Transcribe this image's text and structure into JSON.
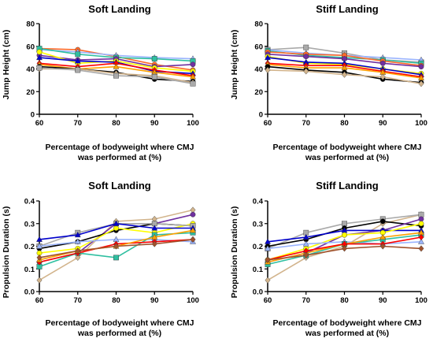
{
  "chart_data": [
    {
      "type": "line",
      "title": "Soft Landing",
      "xlabel": [
        "Percentage of bodyweight where CMJ",
        "was performed at (%)"
      ],
      "ylabel": "Jump Height  (cm)",
      "xlim": [
        60,
        100
      ],
      "ylim": [
        0,
        80
      ],
      "xticks": [
        "60",
        "70",
        "80",
        "90",
        "100"
      ],
      "yticks": [
        "0",
        "20",
        "40",
        "60",
        "80"
      ],
      "x": [
        60,
        70,
        80,
        90,
        100
      ],
      "series": [
        {
          "color": "#ff6a2a",
          "marker": "circle",
          "values": [
            58,
            57,
            51,
            44,
            39
          ]
        },
        {
          "color": "#9ab4ff",
          "marker": "triangle",
          "values": [
            57,
            55,
            52,
            50,
            49
          ]
        },
        {
          "color": "#2fbfa0",
          "marker": "square",
          "values": [
            58,
            53,
            50,
            49,
            47
          ]
        },
        {
          "color": "#7030a0",
          "marker": "circle",
          "values": [
            52,
            48,
            49,
            42,
            44
          ]
        },
        {
          "color": "#ffff00",
          "marker": "circle",
          "values": [
            55,
            45,
            47,
            41,
            38
          ]
        },
        {
          "color": "#0000cc",
          "marker": "triangle",
          "values": [
            50,
            47,
            46,
            38,
            36
          ]
        },
        {
          "color": "#ff0000",
          "marker": "diamond",
          "values": [
            45,
            42,
            45,
            39,
            34
          ]
        },
        {
          "color": "#ffa000",
          "marker": "triangle",
          "values": [
            44,
            40,
            42,
            37,
            33
          ]
        },
        {
          "color": "#000000",
          "marker": "circle",
          "values": [
            42,
            40,
            37,
            31,
            29
          ]
        },
        {
          "color": "#d2b48c",
          "marker": "diamond",
          "values": [
            40,
            40,
            36,
            34,
            28
          ]
        },
        {
          "color": "#aaaaaa",
          "marker": "square",
          "values": [
            41,
            39,
            34,
            33,
            27
          ]
        }
      ]
    },
    {
      "type": "line",
      "title": "Stiff Landing",
      "xlabel": [
        "Percentage of bodyweight where CMJ",
        "was performed at (%)"
      ],
      "ylabel": "Jump Height  (cm)",
      "xlim": [
        60,
        100
      ],
      "ylim": [
        0,
        80
      ],
      "xticks": [
        "60",
        "70",
        "80",
        "90",
        "100"
      ],
      "yticks": [
        "0",
        "20",
        "40",
        "60",
        "80"
      ],
      "x": [
        60,
        70,
        80,
        90,
        100
      ],
      "series": [
        {
          "color": "#aaaaaa",
          "marker": "square",
          "values": [
            57,
            59,
            54,
            48,
            46
          ]
        },
        {
          "color": "#9ab4ff",
          "marker": "triangle",
          "values": [
            57,
            54,
            52,
            50,
            48
          ]
        },
        {
          "color": "#2fbfa0",
          "marker": "square",
          "values": [
            56,
            52,
            50,
            48,
            45
          ]
        },
        {
          "color": "#ff6a2a",
          "marker": "circle",
          "values": [
            55,
            53,
            52,
            47,
            43
          ]
        },
        {
          "color": "#7030a0",
          "marker": "circle",
          "values": [
            53,
            51,
            49,
            45,
            42
          ]
        },
        {
          "color": "#ffff00",
          "marker": "circle",
          "values": [
            51,
            45,
            44,
            40,
            36
          ]
        },
        {
          "color": "#0000cc",
          "marker": "triangle",
          "values": [
            50,
            46,
            45,
            40,
            35
          ]
        },
        {
          "color": "#ff0000",
          "marker": "diamond",
          "values": [
            45,
            43,
            43,
            38,
            33
          ]
        },
        {
          "color": "#ffa000",
          "marker": "triangle",
          "values": [
            44,
            41,
            41,
            37,
            32
          ]
        },
        {
          "color": "#000000",
          "marker": "circle",
          "values": [
            42,
            39,
            37,
            31,
            28
          ]
        },
        {
          "color": "#d2b48c",
          "marker": "diamond",
          "values": [
            39,
            38,
            35,
            33,
            27
          ]
        }
      ]
    },
    {
      "type": "line",
      "title": "Soft Landing",
      "xlabel": [
        "Percentage of bodyweight where CMJ",
        "was performed at (%)"
      ],
      "ylabel": "Propulsion Duration  (s)",
      "xlim": [
        60,
        100
      ],
      "ylim": [
        0,
        0.4
      ],
      "xticks": [
        "60",
        "70",
        "80",
        "90",
        "100"
      ],
      "yticks": [
        "0.0",
        "0.1",
        "0.2",
        "0.3",
        "0.4"
      ],
      "x": [
        60,
        70,
        80,
        90,
        100
      ],
      "series": [
        {
          "color": "#d2b48c",
          "marker": "diamond",
          "values": [
            0.05,
            0.15,
            0.31,
            0.32,
            0.36
          ]
        },
        {
          "color": "#7030a0",
          "marker": "circle",
          "values": [
            0.13,
            0.17,
            0.3,
            0.3,
            0.34
          ]
        },
        {
          "color": "#000000",
          "marker": "circle",
          "values": [
            0.19,
            0.22,
            0.27,
            0.3,
            0.29
          ]
        },
        {
          "color": "#ffff00",
          "marker": "circle",
          "values": [
            0.17,
            0.19,
            0.28,
            0.26,
            0.3
          ]
        },
        {
          "color": "#aaaaaa",
          "marker": "square",
          "values": [
            0.2,
            0.26,
            0.3,
            0.3,
            0.29
          ]
        },
        {
          "color": "#0000cc",
          "marker": "triangle",
          "values": [
            0.23,
            0.25,
            0.3,
            0.28,
            0.28
          ]
        },
        {
          "color": "#9ab4ff",
          "marker": "triangle",
          "values": [
            0.2,
            0.22,
            0.23,
            0.23,
            0.22
          ]
        },
        {
          "color": "#2fbfa0",
          "marker": "square",
          "values": [
            0.11,
            0.17,
            0.15,
            0.25,
            0.26
          ]
        },
        {
          "color": "#ff0000",
          "marker": "diamond",
          "values": [
            0.13,
            0.17,
            0.21,
            0.22,
            0.23
          ]
        },
        {
          "color": "#ffa000",
          "marker": "triangle",
          "values": [
            0.14,
            0.18,
            0.2,
            0.24,
            0.27
          ]
        },
        {
          "color": "#a0522d",
          "marker": "diamond",
          "values": [
            0.15,
            0.18,
            0.2,
            0.21,
            0.23
          ]
        }
      ]
    },
    {
      "type": "line",
      "title": "Stiff Landing",
      "xlabel": [
        "Percentage of bodyweight where CMJ",
        "was performed at (%)"
      ],
      "ylabel": "Propulsion Duration  (s)",
      "xlim": [
        60,
        100
      ],
      "ylim": [
        0,
        0.4
      ],
      "xticks": [
        "60",
        "70",
        "80",
        "90",
        "100"
      ],
      "yticks": [
        "0.0",
        "0.1",
        "0.2",
        "0.3",
        "0.4"
      ],
      "x": [
        60,
        70,
        80,
        90,
        100
      ],
      "series": [
        {
          "color": "#d2b48c",
          "marker": "diamond",
          "values": [
            0.05,
            0.15,
            0.2,
            0.3,
            0.34
          ]
        },
        {
          "color": "#aaaaaa",
          "marker": "square",
          "values": [
            0.19,
            0.26,
            0.3,
            0.32,
            0.34
          ]
        },
        {
          "color": "#000000",
          "marker": "circle",
          "values": [
            0.2,
            0.23,
            0.28,
            0.31,
            0.29
          ]
        },
        {
          "color": "#7030a0",
          "marker": "circle",
          "values": [
            0.13,
            0.17,
            0.25,
            0.27,
            0.32
          ]
        },
        {
          "color": "#0000cc",
          "marker": "triangle",
          "values": [
            0.22,
            0.24,
            0.27,
            0.27,
            0.27
          ]
        },
        {
          "color": "#ffff00",
          "marker": "circle",
          "values": [
            0.14,
            0.19,
            0.25,
            0.26,
            0.3
          ]
        },
        {
          "color": "#9ab4ff",
          "marker": "triangle",
          "values": [
            0.19,
            0.21,
            0.22,
            0.21,
            0.22
          ]
        },
        {
          "color": "#2fbfa0",
          "marker": "square",
          "values": [
            0.12,
            0.16,
            0.21,
            0.23,
            0.25
          ]
        },
        {
          "color": "#ffa000",
          "marker": "triangle",
          "values": [
            0.13,
            0.17,
            0.21,
            0.24,
            0.26
          ]
        },
        {
          "color": "#ff0000",
          "marker": "diamond",
          "values": [
            0.14,
            0.18,
            0.21,
            0.21,
            0.24
          ]
        },
        {
          "color": "#a0522d",
          "marker": "diamond",
          "values": [
            0.14,
            0.16,
            0.19,
            0.2,
            0.19
          ]
        }
      ]
    }
  ]
}
